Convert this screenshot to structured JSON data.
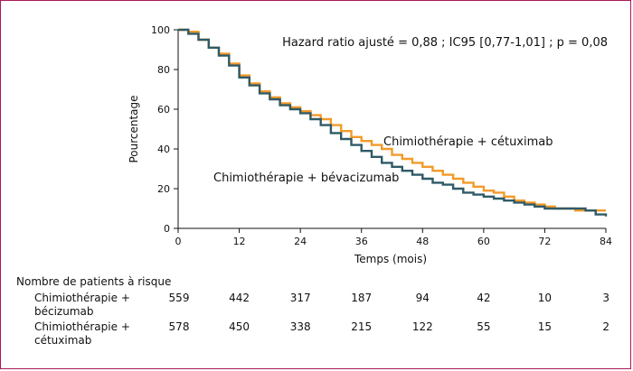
{
  "chart_data": {
    "type": "line",
    "annotation": "Hazard ratio ajusté = 0,88 ; IC95 [0,77-1,01] ; p = 0,08",
    "xlabel": "Temps (mois)",
    "ylabel": "Pourcentage",
    "xlim": [
      0,
      84
    ],
    "ylim": [
      0,
      100
    ],
    "xticks": [
      0,
      12,
      24,
      36,
      48,
      60,
      72,
      84
    ],
    "yticks": [
      0,
      20,
      40,
      60,
      80,
      100
    ],
    "series": [
      {
        "name": "Chimiothérapie + cétuximab",
        "color": "#f39a2a",
        "points": [
          [
            0,
            100
          ],
          [
            2,
            99
          ],
          [
            4,
            95
          ],
          [
            6,
            91
          ],
          [
            8,
            88
          ],
          [
            10,
            83
          ],
          [
            12,
            77
          ],
          [
            14,
            73
          ],
          [
            16,
            69
          ],
          [
            18,
            66
          ],
          [
            20,
            63
          ],
          [
            22,
            61
          ],
          [
            24,
            59
          ],
          [
            26,
            57
          ],
          [
            28,
            55
          ],
          [
            30,
            52
          ],
          [
            32,
            49
          ],
          [
            34,
            46
          ],
          [
            36,
            44
          ],
          [
            38,
            42
          ],
          [
            40,
            40
          ],
          [
            42,
            37
          ],
          [
            44,
            35
          ],
          [
            46,
            33
          ],
          [
            48,
            31
          ],
          [
            50,
            29
          ],
          [
            52,
            27
          ],
          [
            54,
            25
          ],
          [
            56,
            23
          ],
          [
            58,
            21
          ],
          [
            60,
            19
          ],
          [
            62,
            18
          ],
          [
            64,
            16
          ],
          [
            66,
            14
          ],
          [
            68,
            13
          ],
          [
            70,
            12
          ],
          [
            72,
            11
          ],
          [
            74,
            10
          ],
          [
            76,
            10
          ],
          [
            78,
            9
          ],
          [
            80,
            9
          ],
          [
            82,
            9
          ],
          [
            84,
            9
          ]
        ]
      },
      {
        "name": "Chimiothérapie + bévacizumab",
        "color": "#2f5a66",
        "points": [
          [
            0,
            100
          ],
          [
            2,
            98
          ],
          [
            4,
            95
          ],
          [
            6,
            91
          ],
          [
            8,
            87
          ],
          [
            10,
            82
          ],
          [
            12,
            76
          ],
          [
            14,
            72
          ],
          [
            16,
            68
          ],
          [
            18,
            65
          ],
          [
            20,
            62
          ],
          [
            22,
            60
          ],
          [
            24,
            58
          ],
          [
            26,
            55
          ],
          [
            28,
            52
          ],
          [
            30,
            48
          ],
          [
            32,
            45
          ],
          [
            34,
            42
          ],
          [
            36,
            39
          ],
          [
            38,
            36
          ],
          [
            40,
            33
          ],
          [
            42,
            31
          ],
          [
            44,
            29
          ],
          [
            46,
            27
          ],
          [
            48,
            25
          ],
          [
            50,
            23
          ],
          [
            52,
            22
          ],
          [
            54,
            20
          ],
          [
            56,
            18
          ],
          [
            58,
            17
          ],
          [
            60,
            16
          ],
          [
            62,
            15
          ],
          [
            64,
            14
          ],
          [
            66,
            13
          ],
          [
            68,
            12
          ],
          [
            70,
            11
          ],
          [
            72,
            10
          ],
          [
            74,
            10
          ],
          [
            76,
            10
          ],
          [
            78,
            10
          ],
          [
            80,
            9
          ],
          [
            82,
            7
          ],
          [
            84,
            6
          ]
        ]
      }
    ],
    "risk_table": {
      "title": "Nombre de patients à risque",
      "times": [
        0,
        12,
        24,
        36,
        48,
        60,
        72,
        84
      ],
      "rows": [
        {
          "label_line1": "Chimiothérapie +",
          "label_line2": "bécizumab",
          "values": [
            559,
            442,
            317,
            187,
            94,
            42,
            10,
            3
          ]
        },
        {
          "label_line1": "Chimiothérapie +",
          "label_line2": "cétuximab",
          "values": [
            578,
            450,
            338,
            215,
            122,
            55,
            15,
            2
          ]
        }
      ]
    }
  }
}
